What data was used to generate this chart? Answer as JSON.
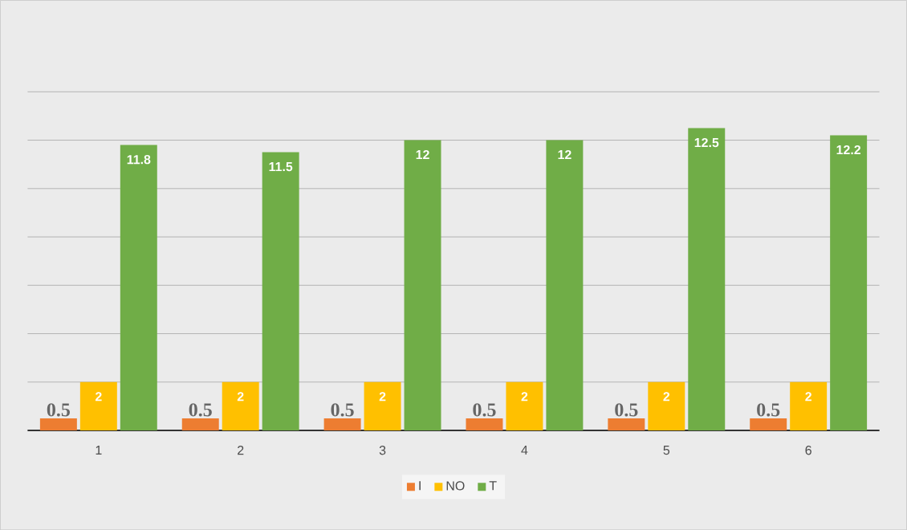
{
  "chart_data": {
    "type": "bar",
    "categories": [
      "1",
      "2",
      "3",
      "4",
      "5",
      "6"
    ],
    "series": [
      {
        "name": "I",
        "color": "#ed7d31",
        "values": [
          0.5,
          0.5,
          0.5,
          0.5,
          0.5,
          0.5
        ]
      },
      {
        "name": "NO",
        "color": "#ffc000",
        "values": [
          2,
          2,
          2,
          2,
          2,
          2
        ]
      },
      {
        "name": "T",
        "color": "#70ad47",
        "values": [
          11.8,
          11.5,
          12,
          12,
          12.5,
          12.2
        ]
      }
    ],
    "ylim": [
      0,
      14
    ],
    "yticks": [
      {
        "value": 0,
        "label": null
      },
      {
        "value": 2,
        "label": null
      },
      {
        "value": 4,
        "label": null
      },
      {
        "value": 6,
        "label": null
      },
      {
        "value": 8,
        "label": null
      },
      {
        "value": 10,
        "label": null
      },
      {
        "value": 12,
        "label": null
      },
      {
        "value": 14,
        "label": null
      }
    ],
    "tick_labels": "x",
    "grid": "y",
    "legend": "bottom",
    "data_labels": true
  }
}
